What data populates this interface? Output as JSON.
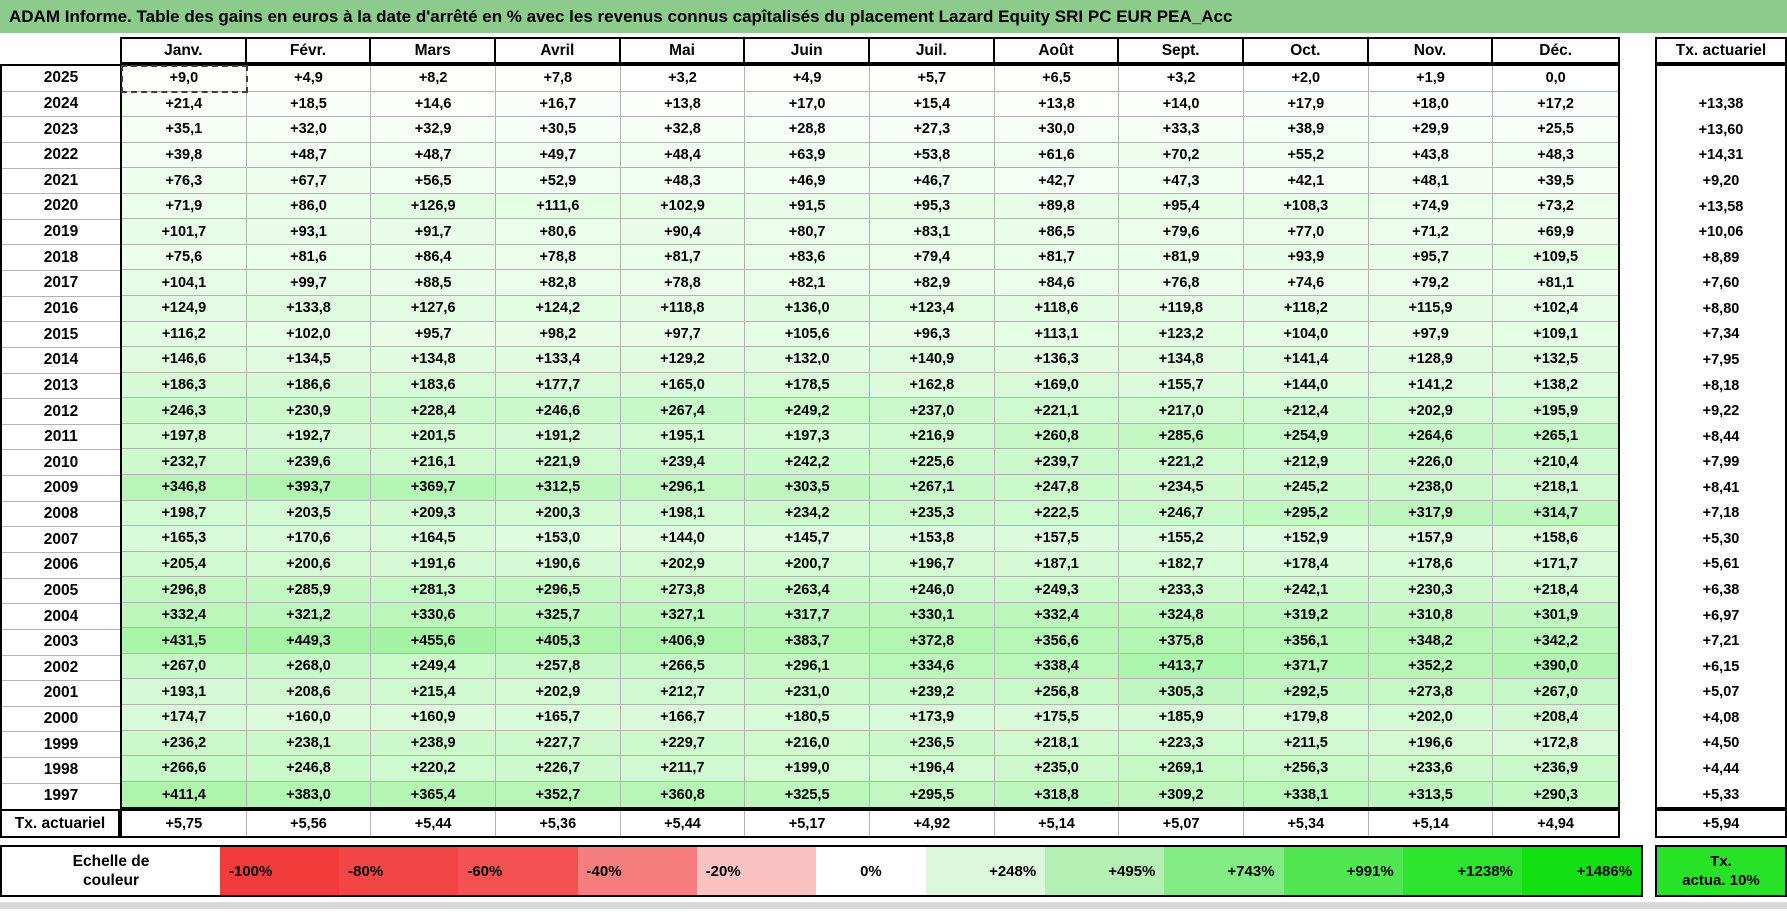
{
  "title": "ADAM Informe. Table des gains en euros à la date d'arrêté en % avec les revenus connus capîtalisés du placement Lazard Equity SRI PC EUR PEA_Acc",
  "columns": {
    "months": [
      "Janv.",
      "Févr.",
      "Mars",
      "Avril",
      "Mai",
      "Juin",
      "Juil.",
      "Août",
      "Sept.",
      "Oct.",
      "Nov.",
      "Déc."
    ],
    "tx_header": "Tx. actuariel"
  },
  "rows": [
    {
      "year": "2025",
      "values": [
        "+9,0",
        "+4,9",
        "+8,2",
        "+7,8",
        "+3,2",
        "+4,9",
        "+5,7",
        "+6,5",
        "+3,2",
        "+2,0",
        "+1,9",
        "0,0"
      ],
      "tx": ""
    },
    {
      "year": "2024",
      "values": [
        "+21,4",
        "+18,5",
        "+14,6",
        "+16,7",
        "+13,8",
        "+17,0",
        "+15,4",
        "+13,8",
        "+14,0",
        "+17,9",
        "+18,0",
        "+17,2"
      ],
      "tx": "+13,38"
    },
    {
      "year": "2023",
      "values": [
        "+35,1",
        "+32,0",
        "+32,9",
        "+30,5",
        "+32,8",
        "+28,8",
        "+27,3",
        "+30,0",
        "+33,3",
        "+38,9",
        "+29,9",
        "+25,5"
      ],
      "tx": "+13,60"
    },
    {
      "year": "2022",
      "values": [
        "+39,8",
        "+48,7",
        "+48,7",
        "+49,7",
        "+48,4",
        "+63,9",
        "+53,8",
        "+61,6",
        "+70,2",
        "+55,2",
        "+43,8",
        "+48,3"
      ],
      "tx": "+14,31"
    },
    {
      "year": "2021",
      "values": [
        "+76,3",
        "+67,7",
        "+56,5",
        "+52,9",
        "+48,3",
        "+46,9",
        "+46,7",
        "+42,7",
        "+47,3",
        "+42,1",
        "+48,1",
        "+39,5"
      ],
      "tx": "+9,20"
    },
    {
      "year": "2020",
      "values": [
        "+71,9",
        "+86,0",
        "+126,9",
        "+111,6",
        "+102,9",
        "+91,5",
        "+95,3",
        "+89,8",
        "+95,4",
        "+108,3",
        "+74,9",
        "+73,2"
      ],
      "tx": "+13,58"
    },
    {
      "year": "2019",
      "values": [
        "+101,7",
        "+93,1",
        "+91,7",
        "+80,6",
        "+90,4",
        "+80,7",
        "+83,1",
        "+86,5",
        "+79,6",
        "+77,0",
        "+71,2",
        "+69,9"
      ],
      "tx": "+10,06"
    },
    {
      "year": "2018",
      "values": [
        "+75,6",
        "+81,6",
        "+86,4",
        "+78,8",
        "+81,7",
        "+83,6",
        "+79,4",
        "+81,7",
        "+81,9",
        "+93,9",
        "+95,7",
        "+109,5"
      ],
      "tx": "+8,89"
    },
    {
      "year": "2017",
      "values": [
        "+104,1",
        "+99,7",
        "+88,5",
        "+82,8",
        "+78,8",
        "+82,1",
        "+82,9",
        "+84,6",
        "+76,8",
        "+74,6",
        "+79,2",
        "+81,1"
      ],
      "tx": "+7,60"
    },
    {
      "year": "2016",
      "values": [
        "+124,9",
        "+133,8",
        "+127,6",
        "+124,2",
        "+118,8",
        "+136,0",
        "+123,4",
        "+118,6",
        "+119,8",
        "+118,2",
        "+115,9",
        "+102,4"
      ],
      "tx": "+8,80"
    },
    {
      "year": "2015",
      "values": [
        "+116,2",
        "+102,0",
        "+95,7",
        "+98,2",
        "+97,7",
        "+105,6",
        "+96,3",
        "+113,1",
        "+123,2",
        "+104,0",
        "+97,9",
        "+109,1"
      ],
      "tx": "+7,34"
    },
    {
      "year": "2014",
      "values": [
        "+146,6",
        "+134,5",
        "+134,8",
        "+133,4",
        "+129,2",
        "+132,0",
        "+140,9",
        "+136,3",
        "+134,8",
        "+141,4",
        "+128,9",
        "+132,5"
      ],
      "tx": "+7,95"
    },
    {
      "year": "2013",
      "values": [
        "+186,3",
        "+186,6",
        "+183,6",
        "+177,7",
        "+165,0",
        "+178,5",
        "+162,8",
        "+169,0",
        "+155,7",
        "+144,0",
        "+141,2",
        "+138,2"
      ],
      "tx": "+8,18"
    },
    {
      "year": "2012",
      "values": [
        "+246,3",
        "+230,9",
        "+228,4",
        "+246,6",
        "+267,4",
        "+249,2",
        "+237,0",
        "+221,1",
        "+217,0",
        "+212,4",
        "+202,9",
        "+195,9"
      ],
      "tx": "+9,22"
    },
    {
      "year": "2011",
      "values": [
        "+197,8",
        "+192,7",
        "+201,5",
        "+191,2",
        "+195,1",
        "+197,3",
        "+216,9",
        "+260,8",
        "+285,6",
        "+254,9",
        "+264,6",
        "+265,1"
      ],
      "tx": "+8,44"
    },
    {
      "year": "2010",
      "values": [
        "+232,7",
        "+239,6",
        "+216,1",
        "+221,9",
        "+239,4",
        "+242,2",
        "+225,6",
        "+239,7",
        "+221,2",
        "+212,9",
        "+226,0",
        "+210,4"
      ],
      "tx": "+7,99"
    },
    {
      "year": "2009",
      "values": [
        "+346,8",
        "+393,7",
        "+369,7",
        "+312,5",
        "+296,1",
        "+303,5",
        "+267,1",
        "+247,8",
        "+234,5",
        "+245,2",
        "+238,0",
        "+218,1"
      ],
      "tx": "+8,41"
    },
    {
      "year": "2008",
      "values": [
        "+198,7",
        "+203,5",
        "+209,3",
        "+200,3",
        "+198,1",
        "+234,2",
        "+235,3",
        "+222,5",
        "+246,7",
        "+295,2",
        "+317,9",
        "+314,7"
      ],
      "tx": "+7,18"
    },
    {
      "year": "2007",
      "values": [
        "+165,3",
        "+170,6",
        "+164,5",
        "+153,0",
        "+144,0",
        "+145,7",
        "+153,8",
        "+157,5",
        "+155,2",
        "+152,9",
        "+157,9",
        "+158,6"
      ],
      "tx": "+5,30"
    },
    {
      "year": "2006",
      "values": [
        "+205,4",
        "+200,6",
        "+191,6",
        "+190,6",
        "+202,9",
        "+200,7",
        "+196,7",
        "+187,1",
        "+182,7",
        "+178,4",
        "+178,6",
        "+171,7"
      ],
      "tx": "+5,61"
    },
    {
      "year": "2005",
      "values": [
        "+296,8",
        "+285,9",
        "+281,3",
        "+296,5",
        "+273,8",
        "+263,4",
        "+246,0",
        "+249,3",
        "+233,3",
        "+242,1",
        "+230,3",
        "+218,4"
      ],
      "tx": "+6,38"
    },
    {
      "year": "2004",
      "values": [
        "+332,4",
        "+321,2",
        "+330,6",
        "+325,7",
        "+327,1",
        "+317,7",
        "+330,1",
        "+332,4",
        "+324,8",
        "+319,2",
        "+310,8",
        "+301,9"
      ],
      "tx": "+6,97"
    },
    {
      "year": "2003",
      "values": [
        "+431,5",
        "+449,3",
        "+455,6",
        "+405,3",
        "+406,9",
        "+383,7",
        "+372,8",
        "+356,6",
        "+375,8",
        "+356,1",
        "+348,2",
        "+342,2"
      ],
      "tx": "+7,21"
    },
    {
      "year": "2002",
      "values": [
        "+267,0",
        "+268,0",
        "+249,4",
        "+257,8",
        "+266,5",
        "+296,1",
        "+334,6",
        "+338,4",
        "+413,7",
        "+371,7",
        "+352,2",
        "+390,0"
      ],
      "tx": "+6,15"
    },
    {
      "year": "2001",
      "values": [
        "+193,1",
        "+208,6",
        "+215,4",
        "+202,9",
        "+212,7",
        "+231,0",
        "+239,2",
        "+256,8",
        "+305,3",
        "+292,5",
        "+273,8",
        "+267,0"
      ],
      "tx": "+5,07"
    },
    {
      "year": "2000",
      "values": [
        "+174,7",
        "+160,0",
        "+160,9",
        "+165,7",
        "+166,7",
        "+180,5",
        "+173,9",
        "+175,5",
        "+185,9",
        "+179,8",
        "+202,0",
        "+208,4"
      ],
      "tx": "+4,08"
    },
    {
      "year": "1999",
      "values": [
        "+236,2",
        "+238,1",
        "+238,9",
        "+227,7",
        "+229,7",
        "+216,0",
        "+236,5",
        "+218,1",
        "+223,3",
        "+211,5",
        "+196,6",
        "+172,8"
      ],
      "tx": "+4,50"
    },
    {
      "year": "1998",
      "values": [
        "+266,6",
        "+246,8",
        "+220,2",
        "+226,7",
        "+211,7",
        "+199,0",
        "+196,4",
        "+235,0",
        "+269,1",
        "+256,3",
        "+233,6",
        "+236,9"
      ],
      "tx": "+4,44"
    },
    {
      "year": "1997",
      "values": [
        "+411,4",
        "+383,0",
        "+365,4",
        "+352,7",
        "+360,8",
        "+325,5",
        "+295,5",
        "+318,8",
        "+309,2",
        "+338,1",
        "+313,5",
        "+290,3"
      ],
      "tx": "+5,33"
    }
  ],
  "tx_row": {
    "label": "Tx. actuariel",
    "values": [
      "+5,75",
      "+5,56",
      "+5,44",
      "+5,36",
      "+5,44",
      "+5,17",
      "+4,92",
      "+5,14",
      "+5,07",
      "+5,34",
      "+5,14",
      "+4,94"
    ],
    "tx": "+5,94"
  },
  "legend": {
    "title_line1": "Echelle de",
    "title_line2": "couleur",
    "segments": [
      {
        "label": "-100%",
        "color": "#F23B3B"
      },
      {
        "label": "-80%",
        "color": "#F24646"
      },
      {
        "label": "-60%",
        "color": "#F45252"
      },
      {
        "label": "-40%",
        "color": "#F67E7E"
      },
      {
        "label": "-20%",
        "color": "#FAC2C2"
      },
      {
        "label": "0%",
        "color": "#FFFFFF"
      },
      {
        "label": "+248%",
        "color": "#DCF7DC"
      },
      {
        "label": "+495%",
        "color": "#B4F0B4"
      },
      {
        "label": "+743%",
        "color": "#83EB83"
      },
      {
        "label": "+991%",
        "color": "#52E652"
      },
      {
        "label": "+1238%",
        "color": "#2EE32E"
      },
      {
        "label": "+1486%",
        "color": "#12E012"
      }
    ],
    "tx_box_line1": "Tx.",
    "tx_box_line2": "actua. 10%",
    "tx_box_color": "#27E227"
  },
  "selection": {
    "year": "2025",
    "month": "Janv."
  },
  "colors": {
    "title_bg": "#8CCB8C",
    "grid_line": "#B3B3B3",
    "scale_max_value": 1486
  }
}
